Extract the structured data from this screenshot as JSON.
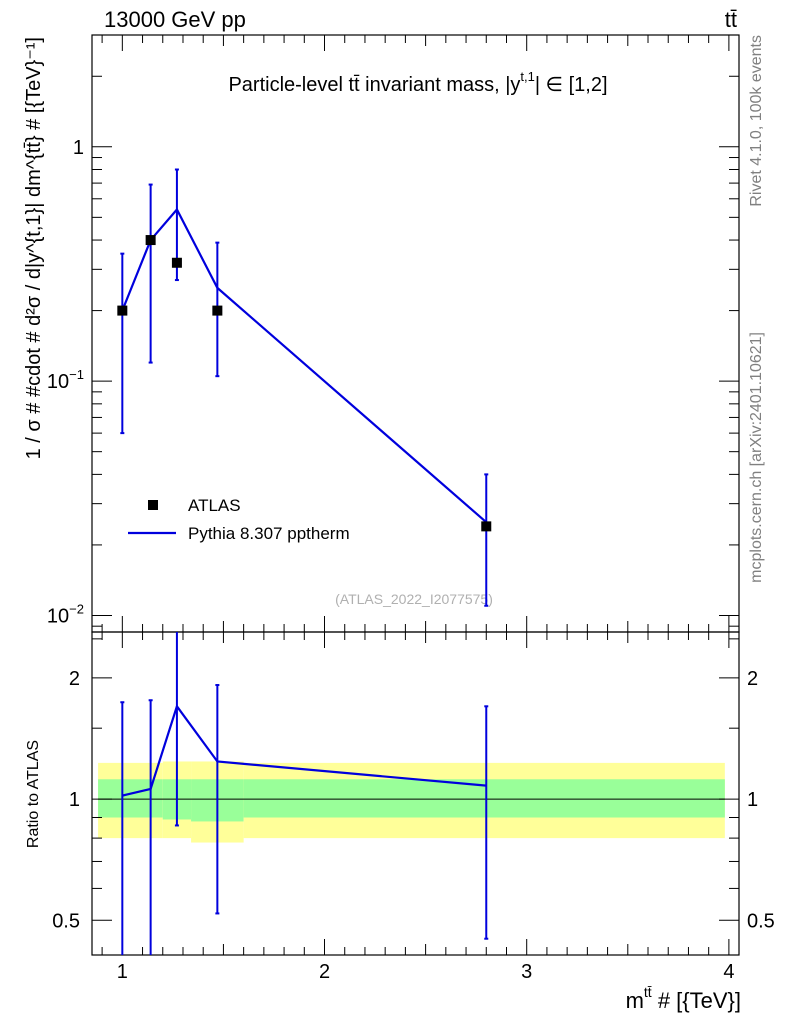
{
  "header": {
    "energy": "13000 GeV pp",
    "process": "tt̄"
  },
  "side": {
    "rivet": "Rivet 4.1.0,  100k events",
    "mcplots": "mcplots.cern.ch [arXiv:2401.10621]"
  },
  "chart_data": {
    "type": "line",
    "title": "Particle-level tt̄ invariant mass, |y^{t,1}| ∈ [1,2]",
    "title_text": "Particle-level tt̄ invariant mass, |y",
    "title_sup": "t,1",
    "title_rest": "| ∈ [1,2]",
    "watermark": "(ATLAS_2022_I2077575)",
    "ylabel": "1 / σ # #cdot # d²σ / d|y^{t,1}| dm^{tt̄} # [{TeV}⁻¹]",
    "ylabel_text": "1 / σ # #cdot # d²σ / d|y^{t,1}| dm^{tt̄} # [{TeV}⁻¹]",
    "xlabel_main": "m",
    "xlabel_sup": "tt̄",
    "xlabel_rest": " # [{TeV}]",
    "xlim": [
      0.85,
      4.05
    ],
    "ylim_log": [
      0.0085,
      3.0
    ],
    "x_ticks": [
      1,
      2,
      3,
      4
    ],
    "x_tick_labels": [
      "1",
      "2",
      "3",
      "4"
    ],
    "y_major": [
      0.01,
      0.1,
      1
    ],
    "y_tick_labels": [
      {
        "base": "10",
        "exp": "−2"
      },
      {
        "base": "10",
        "exp": "−1"
      },
      {
        "base": "1",
        "exp": ""
      }
    ],
    "legend": [
      {
        "name": "ATLAS",
        "type": "marker"
      },
      {
        "name": "Pythia 8.307 pptherm",
        "type": "line"
      }
    ],
    "series": [
      {
        "name": "ATLAS",
        "color": "#000000",
        "x": [
          1.0,
          1.14,
          1.27,
          1.47,
          2.8
        ],
        "values": [
          0.2,
          0.4,
          0.32,
          0.2,
          0.024
        ]
      },
      {
        "name": "Pythia 8.307 pptherm",
        "color": "#0000dd",
        "x": [
          1.0,
          1.14,
          1.27,
          1.47,
          2.8
        ],
        "values": [
          0.2,
          0.4,
          0.54,
          0.25,
          0.025
        ],
        "err_low": [
          0.06,
          0.12,
          0.27,
          0.105,
          0.011
        ],
        "err_high": [
          0.35,
          0.69,
          0.8,
          0.39,
          0.04
        ]
      }
    ],
    "ratio": {
      "ylabel": "Ratio to ATLAS",
      "ylim_log": [
        0.41,
        2.6
      ],
      "y_ticks": [
        0.5,
        1,
        2
      ],
      "y_tick_labels": [
        "0.5",
        "1",
        "2"
      ],
      "values": [
        1.02,
        1.06,
        1.7,
        1.24,
        1.08
      ],
      "err_low": [
        0.3,
        0.3,
        0.86,
        0.52,
        0.45
      ],
      "err_high": [
        1.74,
        1.76,
        2.7,
        1.92,
        1.7
      ],
      "band_edges": [
        0.88,
        1.08,
        1.2,
        1.34,
        1.6,
        3.98
      ],
      "band_stat": [
        [
          0.9,
          1.12
        ],
        [
          0.9,
          1.12
        ],
        [
          0.89,
          1.12
        ],
        [
          0.88,
          1.12
        ],
        [
          0.9,
          1.12
        ]
      ],
      "band_total": [
        [
          0.8,
          1.23
        ],
        [
          0.8,
          1.23
        ],
        [
          0.8,
          1.24
        ],
        [
          0.78,
          1.24
        ],
        [
          0.8,
          1.23
        ]
      ],
      "band_stat_color": "#99ff99",
      "band_total_color": "#ffff99"
    }
  }
}
